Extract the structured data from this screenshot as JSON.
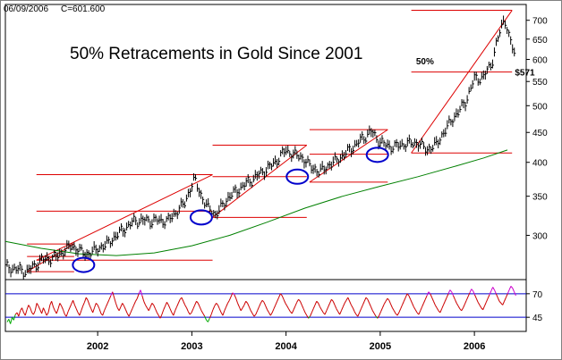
{
  "header": {
    "date": "06/09/2006",
    "close_label": "C=601.600"
  },
  "chart_data": [
    {
      "type": "line",
      "title": "50% Retracements in Gold Since 2001",
      "price_scale": "log",
      "xlim": [
        2001.02,
        2006.55
      ],
      "ylim": [
        252,
        745
      ],
      "y_ticks": [
        300,
        350,
        400,
        450,
        500,
        550,
        600,
        650,
        700
      ],
      "x_ticks": [
        {
          "x": 2002.0,
          "label": "2002"
        },
        {
          "x": 2003.0,
          "label": "2003"
        },
        {
          "x": 2004.0,
          "label": "2004"
        },
        {
          "x": 2005.0,
          "label": "2005"
        },
        {
          "x": 2006.0,
          "label": "2006"
        }
      ],
      "grid": false,
      "series": [
        {
          "style": "weekly price bars",
          "color": "#000000",
          "points": [
            [
              2001.02,
              265
            ],
            [
              2001.25,
              260
            ],
            [
              2001.4,
              272
            ],
            [
              2001.55,
              275
            ],
            [
              2001.72,
              288
            ],
            [
              2001.88,
              278
            ],
            [
              2002.1,
              290
            ],
            [
              2002.25,
              305
            ],
            [
              2002.4,
              318
            ],
            [
              2002.55,
              318
            ],
            [
              2002.75,
              318
            ],
            [
              2002.92,
              340
            ],
            [
              2003.03,
              375
            ],
            [
              2003.1,
              350
            ],
            [
              2003.15,
              338
            ],
            [
              2003.25,
              325
            ],
            [
              2003.4,
              350
            ],
            [
              2003.55,
              365
            ],
            [
              2003.7,
              380
            ],
            [
              2003.85,
              395
            ],
            [
              2004.0,
              420
            ],
            [
              2004.08,
              412
            ],
            [
              2004.15,
              410
            ],
            [
              2004.25,
              395
            ],
            [
              2004.35,
              385
            ],
            [
              2004.45,
              395
            ],
            [
              2004.6,
              410
            ],
            [
              2004.75,
              430
            ],
            [
              2004.9,
              452
            ],
            [
              2004.96,
              440
            ],
            [
              2005.05,
              428
            ],
            [
              2005.15,
              425
            ],
            [
              2005.25,
              430
            ],
            [
              2005.4,
              432
            ],
            [
              2005.5,
              420
            ],
            [
              2005.6,
              430
            ],
            [
              2005.75,
              470
            ],
            [
              2005.9,
              505
            ],
            [
              2006.0,
              555
            ],
            [
              2006.1,
              560
            ],
            [
              2006.18,
              590
            ],
            [
              2006.25,
              650
            ],
            [
              2006.32,
              710
            ],
            [
              2006.37,
              650
            ],
            [
              2006.42,
              620
            ],
            [
              2006.44,
              601.6
            ]
          ]
        },
        {
          "style": "moving average",
          "color": "#008000",
          "points": [
            [
              2001.02,
              293
            ],
            [
              2001.4,
              285
            ],
            [
              2001.8,
              279
            ],
            [
              2002.2,
              277
            ],
            [
              2002.6,
              280
            ],
            [
              2003.0,
              288
            ],
            [
              2003.4,
              300
            ],
            [
              2003.8,
              316
            ],
            [
              2004.2,
              334
            ],
            [
              2004.6,
              350
            ],
            [
              2005.0,
              364
            ],
            [
              2005.4,
              378
            ],
            [
              2005.8,
              394
            ],
            [
              2006.1,
              407
            ],
            [
              2006.35,
              420
            ]
          ]
        }
      ],
      "retracements": [
        {
          "x": [
            2001.25,
            2001.75
          ],
          "top": 290,
          "bottom": 260,
          "mid": 276
        },
        {
          "x": [
            2001.35,
            2003.22
          ],
          "top": 381,
          "bottom": 272,
          "mid": 330
        },
        {
          "x": [
            2003.22,
            2004.22
          ],
          "top": 428,
          "bottom": 322,
          "mid": 378
        },
        {
          "x": [
            2004.25,
            2005.08
          ],
          "top": 455,
          "bottom": 370,
          "mid": 413
        },
        {
          "x": [
            2005.33,
            2006.4
          ],
          "top": 728,
          "bottom": 415,
          "mid": 571
        }
      ],
      "annotations": [
        {
          "text": "50%",
          "x": 2005.38,
          "y": 588
        },
        {
          "text": "$571",
          "x": 2006.43,
          "y": 563
        }
      ],
      "circles": [
        {
          "x": 2001.85,
          "y": 267
        },
        {
          "x": 2003.1,
          "y": 322
        },
        {
          "x": 2004.12,
          "y": 378
        },
        {
          "x": 2004.97,
          "y": 412
        }
      ]
    },
    {
      "type": "line",
      "name": "indicator",
      "ylim": [
        30,
        85
      ],
      "y_ticks": [
        45,
        70
      ],
      "reference_lines": [
        70,
        45
      ],
      "color_above": "#cc00cc",
      "color_mid": "#cc0000",
      "color_below": "#00aa00",
      "values": [
        40,
        43,
        38,
        45,
        42,
        48,
        50,
        46,
        52,
        55,
        50,
        47,
        53,
        58,
        55,
        50,
        48,
        52,
        60,
        57,
        53,
        49,
        55,
        51,
        47,
        50,
        58,
        62,
        56,
        52,
        49,
        54,
        60,
        57,
        53,
        48,
        46,
        51,
        55,
        59,
        63,
        58,
        54,
        50,
        47,
        52,
        57,
        61,
        66,
        63,
        58,
        54,
        50,
        55,
        60,
        58,
        54,
        49,
        47,
        52,
        56,
        60,
        64,
        68,
        72,
        66,
        60,
        55,
        52,
        56,
        60,
        57,
        53,
        49,
        46,
        50,
        54,
        58,
        62,
        65,
        70,
        74,
        68,
        62,
        58,
        55,
        52,
        56,
        60,
        58,
        54,
        50,
        47,
        44,
        48,
        53,
        57,
        61,
        58,
        54,
        50,
        47,
        52,
        56,
        60,
        64,
        66,
        62,
        58,
        55,
        51,
        48,
        50,
        54,
        58,
        62,
        60,
        56,
        52,
        49,
        46,
        42,
        40,
        44,
        48,
        53,
        57,
        60,
        58,
        54,
        50,
        47,
        52,
        56,
        60,
        63,
        67,
        71,
        69,
        65,
        60,
        56,
        52,
        55,
        58,
        62,
        60,
        56,
        52,
        49,
        46,
        48,
        52,
        56,
        60,
        63,
        61,
        57,
        53,
        50,
        47,
        50,
        54,
        58,
        62,
        66,
        70,
        68,
        64,
        60,
        57,
        54,
        51,
        49,
        53,
        57,
        61,
        64,
        62,
        58,
        54,
        50,
        47,
        44,
        46,
        50,
        54,
        58,
        62,
        60,
        56,
        53,
        50,
        48,
        52,
        56,
        60,
        64,
        62,
        58,
        54,
        51,
        48,
        52,
        56,
        60,
        63,
        66,
        62,
        58,
        55,
        51,
        48,
        46,
        50,
        54,
        58,
        62,
        66,
        64,
        60,
        56,
        52,
        49,
        46,
        44,
        47,
        51,
        55,
        59,
        62,
        65,
        63,
        59,
        55,
        52,
        49,
        47,
        50,
        54,
        58,
        62,
        66,
        70,
        68,
        64,
        60,
        56,
        53,
        50,
        48,
        52,
        56,
        60,
        64,
        68,
        72,
        70,
        66,
        62,
        58,
        55,
        52,
        50,
        54,
        58,
        62,
        66,
        70,
        74,
        72,
        68,
        64,
        60,
        57,
        54,
        52,
        55,
        59,
        63,
        67,
        71,
        75,
        73,
        69,
        65,
        61,
        58,
        55,
        53,
        57,
        61,
        65,
        69,
        73,
        77,
        74,
        70,
        66,
        62,
        60,
        58,
        62,
        66,
        70,
        74,
        78,
        76,
        72,
        68
      ]
    }
  ]
}
